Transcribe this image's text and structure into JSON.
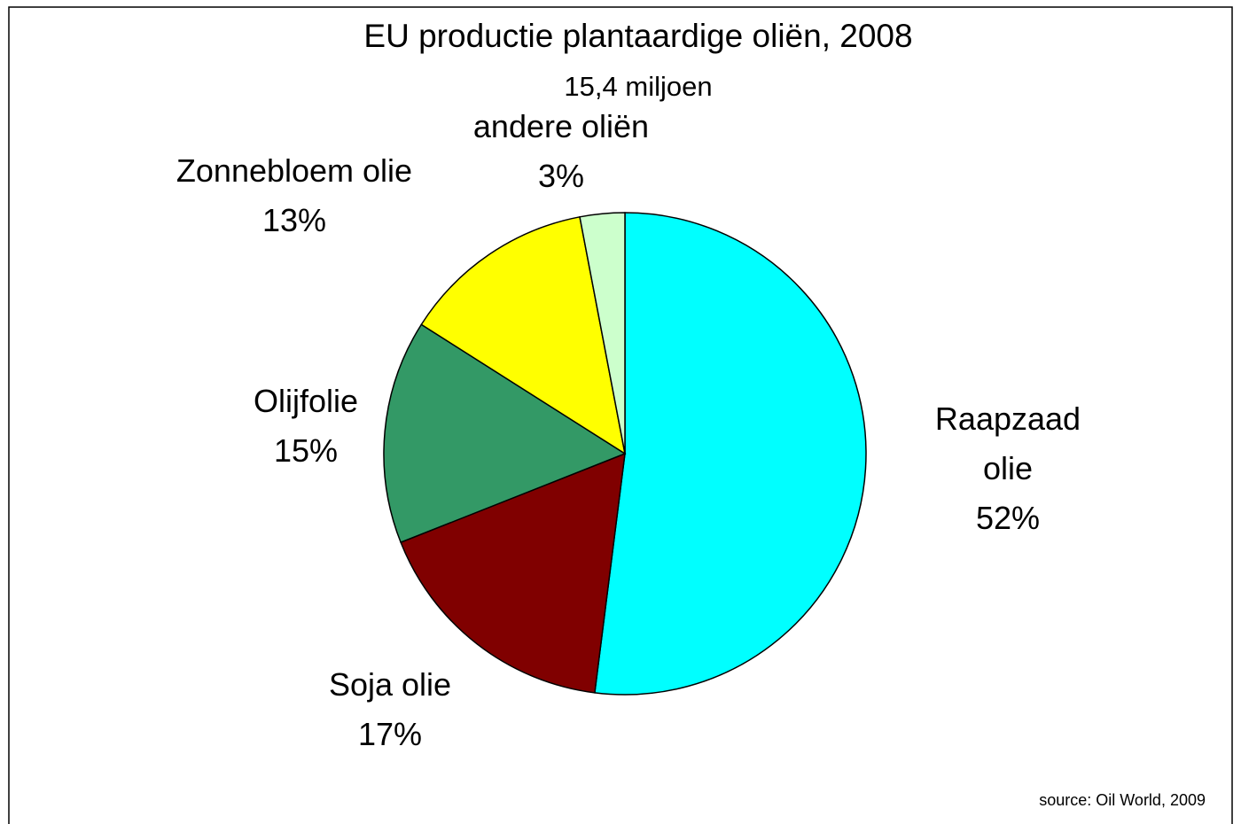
{
  "chart_data": {
    "type": "pie",
    "title": "EU productie plantaardige oliën, 2008",
    "subtitle": "15,4 miljoen",
    "categories": [
      "Raapzaad olie",
      "Soja olie",
      "Olijfolie",
      "Zonnebloem olie",
      "andere oliën"
    ],
    "values": [
      52,
      17,
      15,
      13,
      3
    ],
    "value_labels": [
      "52%",
      "17%",
      "15%",
      "13%",
      "3%"
    ],
    "colors": [
      "#00ffff",
      "#800000",
      "#339966",
      "#ffff00",
      "#ccffcc"
    ],
    "source": "source: Oil World, 2009"
  }
}
